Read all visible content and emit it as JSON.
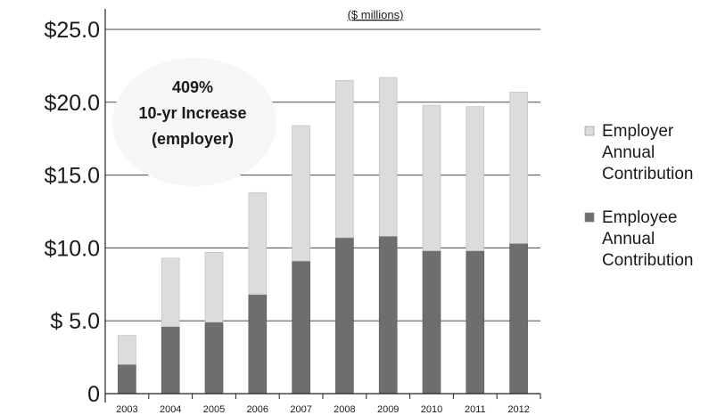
{
  "chart_data": {
    "type": "bar",
    "stacked": true,
    "subtitle": "($ millions)",
    "categories": [
      "2003",
      "2004",
      "2005",
      "2006",
      "2007",
      "2008",
      "2009",
      "2010",
      "2011",
      "2012"
    ],
    "series": [
      {
        "name": "Employee Annual Contribution",
        "values": [
          2.0,
          4.6,
          4.9,
          6.8,
          9.1,
          10.7,
          10.8,
          9.8,
          9.8,
          10.3
        ],
        "color": "#6e6e6e"
      },
      {
        "name": "Employer Annual Contribution",
        "values": [
          2.0,
          4.7,
          4.8,
          7.0,
          9.3,
          10.8,
          10.9,
          10.0,
          9.9,
          10.4
        ],
        "color": "#dcdcdc"
      }
    ],
    "ylim": [
      0,
      25
    ],
    "yticks": [
      {
        "value": 0,
        "label": "0"
      },
      {
        "value": 5,
        "label": "$ 5.0"
      },
      {
        "value": 10,
        "label": "$10.0"
      },
      {
        "value": 15,
        "label": "$15.0"
      },
      {
        "value": 20,
        "label": "$20.0"
      },
      {
        "value": 25,
        "label": "$25.0"
      }
    ],
    "annotation": [
      "409%",
      "10-yr Increase",
      "(employer)"
    ],
    "legend": {
      "position": "right",
      "items": [
        {
          "lines": [
            "Employer",
            "Annual",
            "Contribution"
          ],
          "color": "#dcdcdc"
        },
        {
          "lines": [
            "Employee",
            "Annual",
            "Contribution"
          ],
          "color": "#6e6e6e"
        }
      ]
    },
    "grid": true
  }
}
